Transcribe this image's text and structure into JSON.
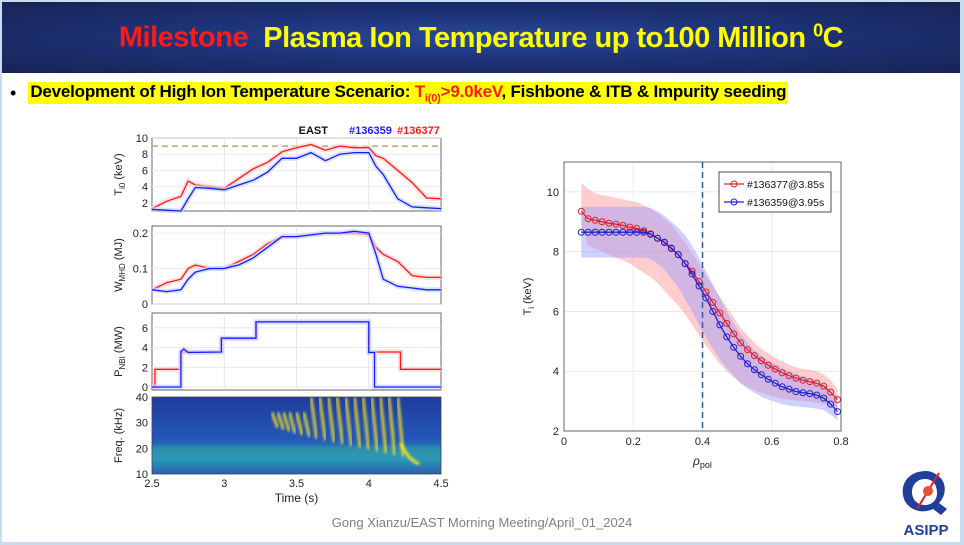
{
  "banner": {
    "prefix": "Milestone",
    "title": "Plasma Ion Temperature  up to100 Million ",
    "degree_sup": "0",
    "unit": "C"
  },
  "bullet": {
    "text_before": "Development of High Ion Temperature Scenario: ",
    "hl_T": "T",
    "hl_sub": "i(0)",
    "hl_rest": ">9.0keV",
    "text_after": ", Fishbone & ITB & Impurity seeding"
  },
  "footer": {
    "text": "Gong Xianzu/EAST Morning Meeting/April_01_2024"
  },
  "logo": {
    "text": "ASIPP"
  },
  "colors": {
    "red": "#ff1a1a",
    "blue": "#1a1aff",
    "banner": "#1d3278",
    "highlight": "#ffff00"
  },
  "chart_data": [
    {
      "type": "line",
      "id": "ti0",
      "title": "EAST",
      "legend": [
        {
          "name": "#136359",
          "color": "#1a1aff"
        },
        {
          "name": "#136377",
          "color": "#ff1a1a"
        }
      ],
      "ylabel": "T_i0 (keV)",
      "ylabel_main": "T",
      "ylabel_sub": "i0",
      "ylabel_unit": " (keV)",
      "ylim": [
        1,
        10
      ],
      "yticks": [
        2,
        4,
        6,
        8,
        10
      ],
      "xlim": [
        2.5,
        4.5
      ],
      "reference_line": 9,
      "series": [
        {
          "name": "#136377",
          "color": "#ff1a1a",
          "x": [
            2.5,
            2.6,
            2.7,
            2.75,
            2.8,
            2.9,
            3.0,
            3.1,
            3.2,
            3.3,
            3.4,
            3.5,
            3.6,
            3.7,
            3.8,
            3.9,
            4.0,
            4.05,
            4.1,
            4.2,
            4.3,
            4.4,
            4.5
          ],
          "y": [
            1.3,
            2.2,
            2.8,
            4.7,
            4.2,
            4.0,
            3.8,
            5.0,
            6.2,
            7.0,
            8.3,
            8.8,
            9.2,
            8.5,
            9.0,
            8.8,
            8.8,
            7.8,
            7.5,
            6.0,
            4.5,
            2.6,
            2.5
          ]
        },
        {
          "name": "#136359",
          "color": "#1a1aff",
          "x": [
            2.5,
            2.6,
            2.7,
            2.75,
            2.8,
            2.9,
            3.0,
            3.1,
            3.2,
            3.3,
            3.4,
            3.5,
            3.6,
            3.7,
            3.8,
            3.9,
            4.0,
            4.05,
            4.1,
            4.2,
            4.3,
            4.4,
            4.5
          ],
          "y": [
            1.2,
            1.1,
            1.0,
            2.5,
            3.9,
            3.8,
            3.6,
            4.2,
            4.8,
            5.8,
            7.5,
            7.5,
            8.2,
            7.2,
            8.0,
            8.2,
            8.2,
            6.5,
            5.5,
            2.5,
            1.5,
            1.4,
            1.3
          ]
        }
      ]
    },
    {
      "type": "line",
      "id": "wmhd",
      "ylabel": "W_MHD (MJ)",
      "ylabel_main": "W",
      "ylabel_sub": "MHD",
      "ylabel_unit": " (MJ)",
      "ylim": [
        0,
        0.22
      ],
      "yticks": [
        0,
        0.1,
        0.2
      ],
      "ytick_labels": [
        "0",
        "0.1",
        "0.2"
      ],
      "xlim": [
        2.5,
        4.5
      ],
      "series": [
        {
          "name": "#136377",
          "color": "#ff1a1a",
          "x": [
            2.5,
            2.6,
            2.7,
            2.75,
            2.8,
            2.9,
            3.0,
            3.1,
            3.2,
            3.3,
            3.4,
            3.5,
            3.6,
            3.7,
            3.8,
            3.9,
            4.0,
            4.05,
            4.1,
            4.2,
            4.3,
            4.4,
            4.5
          ],
          "y": [
            0.04,
            0.06,
            0.07,
            0.1,
            0.11,
            0.1,
            0.1,
            0.12,
            0.14,
            0.17,
            0.19,
            0.19,
            0.195,
            0.2,
            0.2,
            0.2,
            0.195,
            0.16,
            0.14,
            0.12,
            0.08,
            0.075,
            0.075
          ]
        },
        {
          "name": "#136359",
          "color": "#1a1aff",
          "x": [
            2.5,
            2.6,
            2.7,
            2.75,
            2.8,
            2.9,
            3.0,
            3.1,
            3.2,
            3.3,
            3.4,
            3.5,
            3.6,
            3.7,
            3.8,
            3.9,
            4.0,
            4.05,
            4.1,
            4.2,
            4.3,
            4.4,
            4.5
          ],
          "y": [
            0.04,
            0.035,
            0.04,
            0.07,
            0.09,
            0.1,
            0.1,
            0.11,
            0.13,
            0.16,
            0.19,
            0.19,
            0.195,
            0.2,
            0.2,
            0.205,
            0.2,
            0.14,
            0.07,
            0.05,
            0.045,
            0.04,
            0.04
          ]
        }
      ]
    },
    {
      "type": "line",
      "id": "pnbi",
      "ylabel": "P_NBI (MW)",
      "ylabel_main": "P",
      "ylabel_sub": "NBI",
      "ylabel_unit": " (MW)",
      "ylim": [
        -0.3,
        7.5
      ],
      "yticks": [
        0,
        2,
        4,
        6
      ],
      "xlim": [
        2.5,
        4.5
      ],
      "series": [
        {
          "name": "#136377",
          "color": "#ff1a1a",
          "x": [
            2.5,
            2.52,
            2.52,
            2.7,
            2.7,
            2.98,
            2.98,
            3.22,
            3.22,
            4.0,
            4.0,
            4.22,
            4.22,
            4.5
          ],
          "y": [
            0,
            0,
            1.8,
            1.8,
            3.55,
            3.55,
            4.95,
            4.95,
            6.6,
            6.6,
            3.55,
            3.55,
            1.8,
            1.8
          ]
        },
        {
          "name": "#136359",
          "color": "#1a1aff",
          "x": [
            2.5,
            2.7,
            2.7,
            2.72,
            2.75,
            2.98,
            2.98,
            3.22,
            3.22,
            4.0,
            4.0,
            4.04,
            4.04,
            4.5
          ],
          "y": [
            0,
            0,
            3.6,
            3.85,
            3.5,
            3.55,
            4.95,
            4.95,
            6.6,
            6.6,
            3.5,
            3.5,
            0,
            0
          ]
        }
      ]
    },
    {
      "type": "heatmap",
      "id": "spectrogram",
      "ylabel": "Freq. (kHz)",
      "xlabel": "Time (s)",
      "ylim": [
        10,
        40
      ],
      "yticks": [
        10,
        20,
        30,
        40
      ],
      "xlim": [
        2.5,
        4.5
      ],
      "xticks": [
        2.5,
        3,
        3.5,
        4,
        4.5
      ],
      "xtick_labels": [
        "2.5",
        "3",
        "3.5",
        "4",
        "4.5"
      ],
      "features": [
        {
          "label": "fishbone bursts",
          "t_start": 3.3,
          "t_end": 4.35,
          "f_low": 14,
          "f_high": 40
        },
        {
          "label": "background mode",
          "f": 19
        }
      ]
    },
    {
      "type": "line",
      "id": "ti-profile",
      "xlabel": "ρ_pol",
      "xlabel_main": "ρ",
      "xlabel_sub": "pol",
      "ylabel": "T_i (keV)",
      "ylabel_main": "T",
      "ylabel_sub": "i",
      "ylabel_unit": " (keV)",
      "xlim": [
        0,
        0.8
      ],
      "ylim": [
        2,
        11
      ],
      "xticks": [
        0,
        0.2,
        0.4,
        0.6,
        0.8
      ],
      "xtick_labels": [
        "0",
        "0.2",
        "0.4",
        "0.6",
        "0.8"
      ],
      "yticks": [
        2,
        4,
        6,
        8,
        10
      ],
      "vline": 0.4,
      "legend_position": "top-right",
      "series": [
        {
          "name": "#136377@3.85s",
          "color": "#e0202a",
          "band": "#ff9090",
          "x": [
            0.05,
            0.07,
            0.09,
            0.11,
            0.13,
            0.15,
            0.17,
            0.19,
            0.21,
            0.23,
            0.25,
            0.27,
            0.29,
            0.31,
            0.33,
            0.35,
            0.37,
            0.39,
            0.41,
            0.43,
            0.45,
            0.47,
            0.49,
            0.51,
            0.53,
            0.55,
            0.57,
            0.59,
            0.61,
            0.63,
            0.65,
            0.67,
            0.69,
            0.71,
            0.73,
            0.75,
            0.77,
            0.79
          ],
          "y": [
            9.35,
            9.1,
            9.05,
            9.0,
            8.95,
            8.92,
            8.88,
            8.82,
            8.78,
            8.7,
            8.6,
            8.45,
            8.3,
            8.1,
            7.9,
            7.6,
            7.35,
            7.0,
            6.65,
            6.3,
            5.95,
            5.6,
            5.25,
            4.95,
            4.72,
            4.52,
            4.35,
            4.2,
            4.07,
            3.95,
            3.85,
            3.77,
            3.7,
            3.65,
            3.6,
            3.5,
            3.3,
            3.05
          ],
          "band_lo": [
            8.9,
            8.2,
            8.1,
            8.0,
            7.9,
            7.8,
            7.7,
            7.6,
            7.45,
            7.3,
            7.15,
            6.95,
            6.7,
            6.45,
            6.2,
            5.9,
            5.55,
            5.2,
            4.85,
            4.55,
            4.25,
            4.0,
            3.8,
            3.62,
            3.48,
            3.36,
            3.27,
            3.2,
            3.13,
            3.08,
            3.05,
            3.02,
            3.0,
            2.98,
            2.95,
            2.9,
            2.85,
            2.75
          ],
          "band_hi": [
            10.3,
            10.1,
            9.95,
            9.9,
            9.85,
            9.8,
            9.75,
            9.7,
            9.65,
            9.55,
            9.45,
            9.3,
            9.1,
            8.9,
            8.6,
            8.3,
            7.95,
            7.6,
            7.2,
            6.85,
            6.5,
            6.15,
            5.8,
            5.45,
            5.2,
            4.95,
            4.75,
            4.6,
            4.45,
            4.33,
            4.22,
            4.13,
            4.07,
            4.05,
            4.0,
            3.9,
            3.7,
            3.4
          ]
        },
        {
          "name": "#136359@3.95s",
          "color": "#2020d0",
          "band": "#9a9aff",
          "x": [
            0.05,
            0.07,
            0.09,
            0.11,
            0.13,
            0.15,
            0.17,
            0.19,
            0.21,
            0.23,
            0.25,
            0.27,
            0.29,
            0.31,
            0.33,
            0.35,
            0.37,
            0.39,
            0.41,
            0.43,
            0.45,
            0.47,
            0.49,
            0.51,
            0.53,
            0.55,
            0.57,
            0.59,
            0.61,
            0.63,
            0.65,
            0.67,
            0.69,
            0.71,
            0.73,
            0.75,
            0.77,
            0.79
          ],
          "y": [
            8.65,
            8.65,
            8.65,
            8.65,
            8.65,
            8.65,
            8.65,
            8.65,
            8.65,
            8.65,
            8.58,
            8.45,
            8.32,
            8.12,
            7.9,
            7.6,
            7.25,
            6.85,
            6.45,
            6.0,
            5.55,
            5.15,
            4.8,
            4.5,
            4.25,
            4.05,
            3.88,
            3.73,
            3.6,
            3.48,
            3.4,
            3.32,
            3.28,
            3.25,
            3.2,
            3.1,
            2.9,
            2.65
          ],
          "band_lo": [
            7.8,
            7.8,
            7.8,
            7.8,
            7.8,
            7.8,
            7.8,
            7.8,
            7.8,
            7.8,
            7.75,
            7.6,
            7.4,
            7.1,
            6.8,
            6.4,
            6.0,
            5.55,
            5.15,
            4.75,
            4.4,
            4.1,
            3.85,
            3.6,
            3.42,
            3.28,
            3.15,
            3.05,
            2.97,
            2.9,
            2.85,
            2.82,
            2.8,
            2.78,
            2.75,
            2.7,
            2.55,
            2.35
          ],
          "band_hi": [
            9.5,
            9.5,
            9.5,
            9.5,
            9.5,
            9.5,
            9.5,
            9.5,
            9.5,
            9.5,
            9.45,
            9.35,
            9.2,
            9.0,
            8.8,
            8.55,
            8.2,
            7.8,
            7.35,
            6.9,
            6.45,
            6.0,
            5.6,
            5.25,
            4.95,
            4.7,
            4.52,
            4.37,
            4.23,
            4.1,
            4.0,
            3.9,
            3.82,
            3.75,
            3.68,
            3.55,
            3.3,
            2.98
          ]
        }
      ]
    }
  ]
}
